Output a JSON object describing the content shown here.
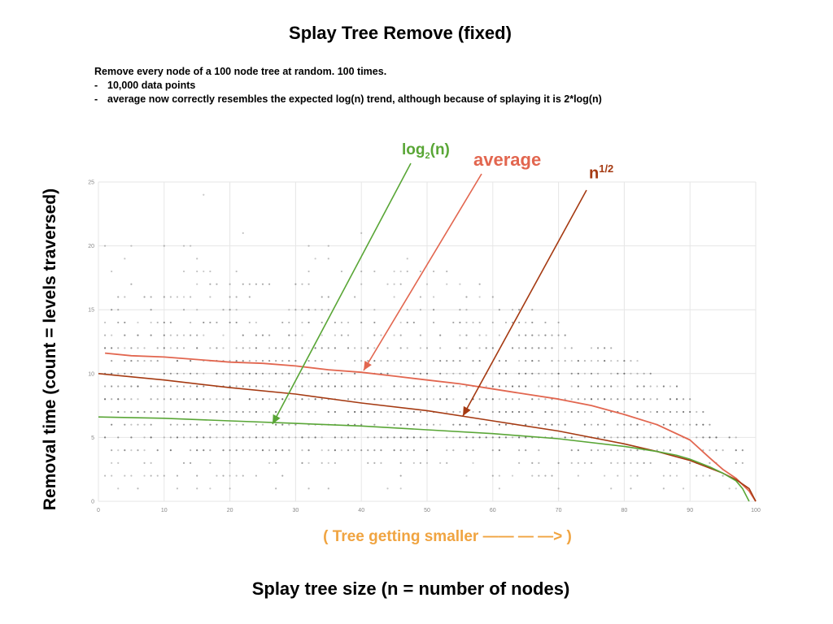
{
  "title": "Splay Tree Remove (fixed)",
  "description": {
    "intro": "Remove every node of a 100 node tree at random. 100 times.",
    "bullet_char": "-",
    "bullets": [
      "10,000 data points",
      "average now correctly resembles the expected log(n) trend, although because of splaying it is 2*log(n)"
    ]
  },
  "direction_note": "( Tree getting smaller —— — —> )",
  "callouts": {
    "log": {
      "base": "log",
      "sub": "2",
      "rest": "(n)"
    },
    "average": "average",
    "sqrt": {
      "base": "n",
      "sup": "1/2"
    }
  },
  "colors": {
    "log": "#59a636",
    "average": "#e2664f",
    "sqrt": "#a53a12",
    "direction": "#f0a441",
    "grid": "#e6e6e6",
    "points": "#333333"
  },
  "chart_data": {
    "type": "scatter",
    "title": "Splay Tree Remove (fixed)",
    "xlabel": "Splay tree size (n = number of nodes)",
    "ylabel": "Removal time (count = levels traversed)",
    "xlim": [
      0,
      100
    ],
    "ylim": [
      0,
      25
    ],
    "xticks": [
      0,
      10,
      20,
      30,
      40,
      50,
      60,
      70,
      80,
      90,
      100
    ],
    "yticks": [
      0,
      5,
      10,
      15,
      20,
      25
    ],
    "grid": true,
    "legend": "none",
    "series": [
      {
        "name": "average",
        "type": "line",
        "x": [
          1,
          5,
          10,
          15,
          20,
          25,
          30,
          35,
          40,
          45,
          50,
          55,
          60,
          65,
          70,
          75,
          80,
          85,
          90,
          93,
          95,
          97,
          99,
          100
        ],
        "y": [
          11.6,
          11.4,
          11.3,
          11.1,
          10.9,
          10.8,
          10.6,
          10.3,
          10.1,
          9.8,
          9.5,
          9.2,
          8.8,
          8.4,
          8.0,
          7.5,
          6.8,
          6.0,
          4.8,
          3.4,
          2.5,
          1.8,
          0.8,
          0
        ]
      },
      {
        "name": "n^1/2",
        "type": "line",
        "x": [
          0,
          10,
          20,
          30,
          40,
          50,
          60,
          70,
          80,
          85,
          90,
          92,
          95,
          97,
          99,
          100
        ],
        "y": [
          10,
          9.5,
          8.9,
          8.4,
          7.7,
          7.1,
          6.3,
          5.5,
          4.5,
          3.9,
          3.2,
          2.8,
          2.2,
          1.7,
          1.0,
          0
        ]
      },
      {
        "name": "log2(n)",
        "type": "line",
        "x": [
          0,
          10,
          20,
          30,
          40,
          50,
          60,
          70,
          80,
          85,
          88,
          90,
          93,
          95,
          97,
          98,
          99
        ],
        "y": [
          6.6,
          6.5,
          6.3,
          6.1,
          5.9,
          5.6,
          5.3,
          4.9,
          4.3,
          3.9,
          3.6,
          3.3,
          2.7,
          2.2,
          1.6,
          1.0,
          0
        ]
      }
    ],
    "scatter_rows": [
      {
        "y": 1,
        "x_range": [
          1,
          100
        ],
        "density": 0.18
      },
      {
        "y": 2,
        "x_range": [
          1,
          99
        ],
        "density": 0.38
      },
      {
        "y": 3,
        "x_range": [
          1,
          98
        ],
        "density": 0.52
      },
      {
        "y": 4,
        "x_range": [
          1,
          98
        ],
        "density": 0.72
      },
      {
        "y": 5,
        "x_range": [
          1,
          97
        ],
        "density": 0.82
      },
      {
        "y": 6,
        "x_range": [
          1,
          94
        ],
        "density": 0.88
      },
      {
        "y": 7,
        "x_range": [
          1,
          92
        ],
        "density": 0.88
      },
      {
        "y": 8,
        "x_range": [
          1,
          90
        ],
        "density": 0.88
      },
      {
        "y": 9,
        "x_range": [
          1,
          88
        ],
        "density": 0.86
      },
      {
        "y": 10,
        "x_range": [
          1,
          85
        ],
        "density": 0.82
      },
      {
        "y": 11,
        "x_range": [
          1,
          82
        ],
        "density": 0.78
      },
      {
        "y": 12,
        "x_range": [
          1,
          78
        ],
        "density": 0.72
      },
      {
        "y": 13,
        "x_range": [
          1,
          74
        ],
        "density": 0.62
      },
      {
        "y": 14,
        "x_range": [
          1,
          70
        ],
        "density": 0.55
      },
      {
        "y": 15,
        "x_range": [
          1,
          66
        ],
        "density": 0.46
      },
      {
        "y": 16,
        "x_range": [
          1,
          62
        ],
        "density": 0.38
      },
      {
        "y": 17,
        "x_range": [
          1,
          58
        ],
        "density": 0.3
      },
      {
        "y": 18,
        "x_range": [
          1,
          54
        ],
        "density": 0.24
      },
      {
        "y": 19,
        "x_range": [
          1,
          50
        ],
        "density": 0.18
      },
      {
        "y": 20,
        "x_range": [
          1,
          45
        ],
        "density": 0.13
      },
      {
        "y": 21,
        "x_range": [
          1,
          40
        ],
        "density": 0.09
      },
      {
        "y": 22,
        "x_range": [
          1,
          35
        ],
        "density": 0.06
      },
      {
        "y": 23,
        "x_range": [
          1,
          28
        ],
        "density": 0.04
      },
      {
        "y": 24,
        "x_range": [
          1,
          22
        ],
        "density": 0.03
      }
    ]
  }
}
